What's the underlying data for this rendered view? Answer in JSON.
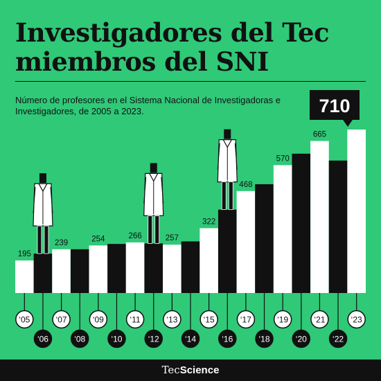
{
  "header": {
    "title": "Investigadores del Tec miembros del SNI",
    "subtitle": "Número de profesores en el Sistema Nacional de Investigadoras e Investigadores, de 2005 a 2023."
  },
  "footer": {
    "brand_prefix": "Tec",
    "brand_suffix": "Science"
  },
  "colors": {
    "background": "#2fc978",
    "dark": "#111111",
    "light": "#ffffff"
  },
  "chart_data": {
    "type": "bar",
    "categories": [
      "‘05",
      "‘06",
      "‘07",
      "‘08",
      "‘09",
      "‘10",
      "‘11",
      "‘12",
      "‘13",
      "‘14",
      "‘15",
      "‘16",
      "‘17",
      "‘18",
      "‘19",
      "‘20",
      "‘21",
      "‘22",
      "‘23"
    ],
    "values": [
      195,
      222,
      239,
      239,
      254,
      260,
      266,
      262,
      257,
      270,
      322,
      395,
      468,
      495,
      570,
      615,
      665,
      588,
      710
    ],
    "data_labels": {
      "‘05": "195",
      "‘07": "239",
      "‘09": "254",
      "‘11": "266",
      "‘13": "257",
      "‘15": "322",
      "‘17": "468",
      "‘19": "570",
      "‘21": "665",
      "‘23": "710"
    },
    "highlight": {
      "category": "‘23",
      "label": "710"
    },
    "ylim": [
      0,
      710
    ],
    "grid": false,
    "decorations": [
      "researcher-figure",
      "researcher-figure",
      "researcher-figure"
    ]
  }
}
